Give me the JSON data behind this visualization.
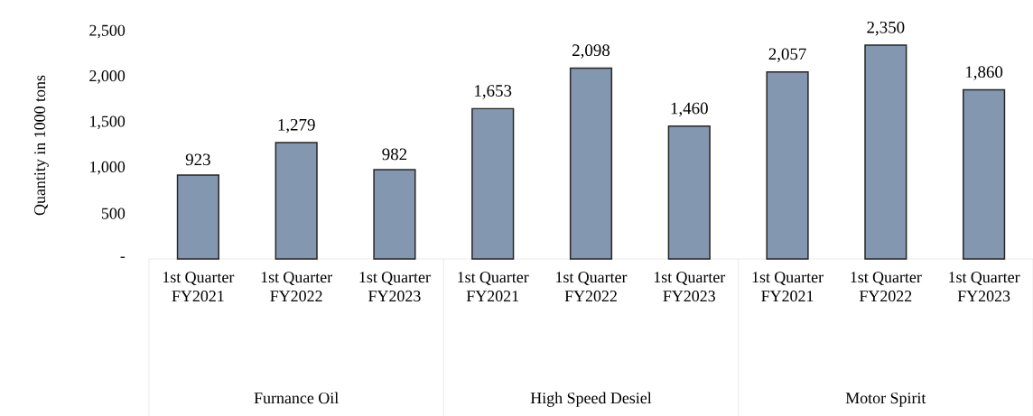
{
  "chart_data": {
    "type": "bar",
    "ylabel": "Quantity in 1000 tons",
    "categories": [
      "1st Quarter FY2021",
      "1st Quarter FY2022",
      "1st Quarter FY2023",
      "1st Quarter FY2021",
      "1st Quarter FY2022",
      "1st Quarter FY2023",
      "1st Quarter FY2021",
      "1st Quarter FY2022",
      "1st Quarter FY2023"
    ],
    "values": [
      923,
      1279,
      982,
      1653,
      2098,
      1460,
      2057,
      2350,
      1860
    ],
    "value_labels": [
      "923",
      "1,279",
      "982",
      "1,653",
      "2,098",
      "1,460",
      "2,057",
      "2,350",
      "1,860"
    ],
    "color": "#8497b0",
    "ylim": [
      0,
      2500
    ],
    "yticks": [
      {
        "value": 0,
        "label": "-"
      },
      {
        "value": 500,
        "label": "500"
      },
      {
        "value": 1000,
        "label": "1,000"
      },
      {
        "value": 1500,
        "label": "1,500"
      },
      {
        "value": 2000,
        "label": "2,000"
      },
      {
        "value": 2500,
        "label": "2,500"
      }
    ],
    "annotations": [
      "Furnance Oil",
      "High Speed Desiel",
      "Motor Spirit"
    ]
  }
}
